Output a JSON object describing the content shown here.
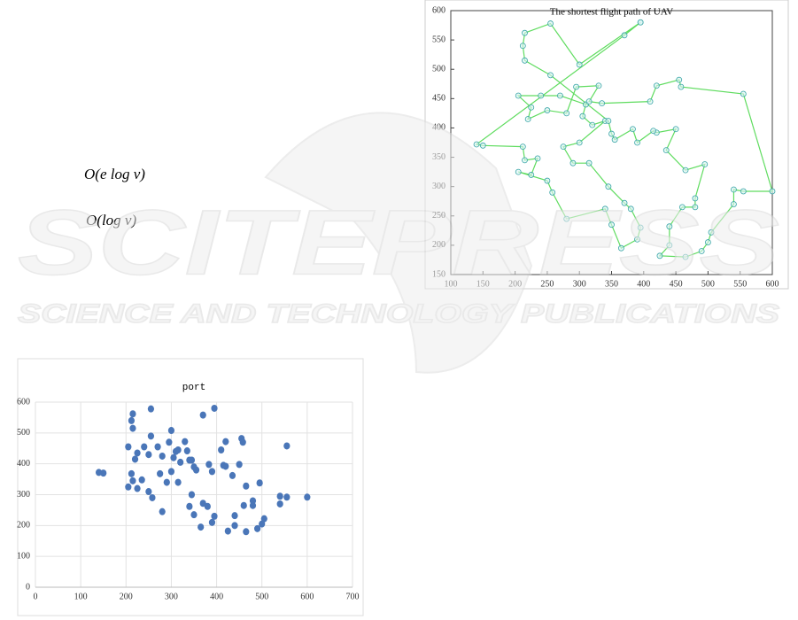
{
  "formulas": [
    "O(e log v)",
    "O(log v)"
  ],
  "watermark": {
    "title": "SCITEPRESS",
    "subtitle": "SCIENCE AND TECHNOLOGY PUBLICATIONS"
  },
  "chart_data": [
    {
      "type": "line",
      "title": "The shortest flight path of UAV",
      "line_color": "#5fdc5f",
      "marker_color": "#3aa6a6",
      "markers": true,
      "x": [
        395,
        370,
        140,
        150,
        212,
        215,
        235,
        225,
        205,
        250,
        258,
        280,
        340,
        350,
        365,
        390,
        395,
        380,
        370,
        345,
        315,
        290,
        275,
        300,
        340,
        320,
        305,
        310,
        270,
        240,
        205,
        225,
        220,
        250,
        280,
        295,
        330,
        315,
        335,
        410,
        420,
        455,
        458,
        555,
        600,
        555,
        540,
        540,
        505,
        500,
        490,
        465,
        425,
        440,
        440,
        460,
        480,
        480,
        495,
        465,
        435,
        450,
        420,
        415,
        390,
        383,
        355,
        350,
        345,
        255,
        215,
        212,
        215,
        255,
        300,
        395
      ],
      "values": [
        580,
        558,
        372,
        370,
        368,
        345,
        348,
        320,
        325,
        310,
        290,
        245,
        262,
        235,
        195,
        210,
        230,
        262,
        272,
        300,
        340,
        340,
        368,
        375,
        412,
        405,
        420,
        440,
        455,
        455,
        455,
        435,
        415,
        430,
        425,
        470,
        472,
        445,
        442,
        445,
        472,
        482,
        470,
        458,
        292,
        292,
        295,
        270,
        222,
        205,
        190,
        180,
        182,
        200,
        232,
        265,
        265,
        280,
        338,
        328,
        362,
        398,
        392,
        395,
        375,
        398,
        380,
        390,
        412,
        490,
        515,
        540,
        562,
        578,
        508,
        580
      ],
      "xlim": [
        100,
        600
      ],
      "xticks": [
        100,
        150,
        200,
        250,
        300,
        350,
        400,
        450,
        500,
        550,
        600
      ],
      "ylim": [
        150,
        600
      ],
      "yticks": [
        150,
        200,
        250,
        300,
        350,
        400,
        450,
        500,
        550,
        600
      ],
      "grid": false
    },
    {
      "type": "scatter",
      "title": "port",
      "marker_color": "#4a76b8",
      "x": [
        395,
        370,
        140,
        150,
        212,
        215,
        235,
        225,
        205,
        250,
        258,
        280,
        340,
        350,
        365,
        390,
        395,
        380,
        370,
        345,
        315,
        290,
        275,
        300,
        340,
        320,
        305,
        310,
        270,
        240,
        205,
        225,
        220,
        250,
        280,
        295,
        330,
        315,
        335,
        410,
        420,
        455,
        458,
        555,
        600,
        555,
        540,
        540,
        505,
        500,
        490,
        465,
        425,
        440,
        440,
        460,
        480,
        480,
        495,
        465,
        435,
        450,
        420,
        415,
        390,
        383,
        355,
        350,
        345,
        255,
        215,
        212,
        215,
        255,
        300
      ],
      "values": [
        580,
        558,
        372,
        370,
        368,
        345,
        348,
        320,
        325,
        310,
        290,
        245,
        262,
        235,
        195,
        210,
        230,
        262,
        272,
        300,
        340,
        340,
        368,
        375,
        412,
        405,
        420,
        440,
        455,
        455,
        455,
        435,
        415,
        430,
        425,
        470,
        472,
        445,
        442,
        445,
        472,
        482,
        470,
        458,
        292,
        292,
        295,
        270,
        222,
        205,
        190,
        180,
        182,
        200,
        232,
        265,
        265,
        280,
        338,
        328,
        362,
        398,
        392,
        395,
        375,
        398,
        380,
        390,
        412,
        490,
        515,
        540,
        562,
        578,
        508
      ],
      "xlim": [
        0,
        700
      ],
      "xticks": [
        0,
        100,
        200,
        300,
        400,
        500,
        600,
        700
      ],
      "ylim": [
        0,
        600
      ],
      "yticks": [
        0,
        100,
        200,
        300,
        400,
        500,
        600
      ],
      "grid": true
    }
  ]
}
